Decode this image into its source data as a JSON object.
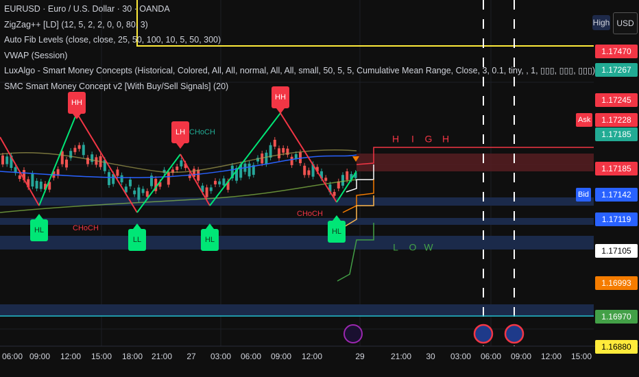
{
  "header": {
    "symbol": "EURUSD · Euro / U.S. Dollar · 30 · OANDA",
    "indicators": [
      "ZigZag++ [LD] (12, 5, 2, 2, 0, 0, 80, 3)",
      "Auto Fib Levels (close, close, 25, 50, 100, 10, 5, 50, 300)",
      "VWAP (Session)",
      "LuxAlgo - Smart Money Concepts (Historical, Colored, All, All, normal, All, All, small, 50, 5, 5, Cumulative Mean Range, Close, 3, 0.1, tiny, , 1, ▯▯▯, ▯▯▯, ▯▯▯)",
      "SMC Smart Money Concept v2 [With Buy/Sell Signals] (20)"
    ]
  },
  "buttons": {
    "high": "High",
    "currency": "USD"
  },
  "price_labels": [
    {
      "text": "1.17470",
      "bg": "#f23645",
      "fg": "#ffffff"
    },
    {
      "text": "1.17267",
      "bg": "#22ab94",
      "fg": "#ffffff"
    },
    {
      "text": "1.17245",
      "bg": "#f23645",
      "fg": "#ffffff"
    },
    {
      "text": "1.17228",
      "bg": "#f23645",
      "fg": "#ffffff",
      "tag": "Ask"
    },
    {
      "text": "1.17185",
      "bg": "#22ab94",
      "fg": "#ffffff"
    },
    {
      "text": "1.17185",
      "bg": "#f23645",
      "fg": "#ffffff"
    },
    {
      "text": "1.17142",
      "bg": "#2962ff",
      "fg": "#ffffff",
      "tag": "Bid"
    },
    {
      "text": "1.17119",
      "bg": "#2962ff",
      "fg": "#ffffff"
    },
    {
      "text": "1.17105",
      "bg": "#ffffff",
      "fg": "#000000"
    },
    {
      "text": "1.16993",
      "bg": "#f57c00",
      "fg": "#ffffff"
    },
    {
      "text": "1.16970",
      "bg": "#43a047",
      "fg": "#ffffff"
    },
    {
      "text": "1.16880",
      "bg": "#ffeb3b",
      "fg": "#000000"
    }
  ],
  "time_labels": [
    "06:00",
    "09:00",
    "12:00",
    "15:00",
    "18:00",
    "21:00",
    "27",
    "03:00",
    "06:00",
    "09:00",
    "12:00",
    "29",
    "21:00",
    "30",
    "03:00",
    "06:00",
    "09:00",
    "12:00",
    "15:00"
  ],
  "markers": [
    {
      "text": "HH",
      "kind": "high"
    },
    {
      "text": "LH",
      "kind": "high"
    },
    {
      "text": "HH",
      "kind": "high"
    },
    {
      "text": "HL",
      "kind": "low"
    },
    {
      "text": "LL",
      "kind": "low"
    },
    {
      "text": "HL",
      "kind": "low"
    },
    {
      "text": "HL",
      "kind": "low"
    }
  ],
  "choch": [
    "CHoCH",
    "CHoCH",
    "CHoCH"
  ],
  "high_letters": [
    "H",
    "I",
    "G",
    "H"
  ],
  "low_letters": [
    "L",
    "O",
    "W"
  ]
}
